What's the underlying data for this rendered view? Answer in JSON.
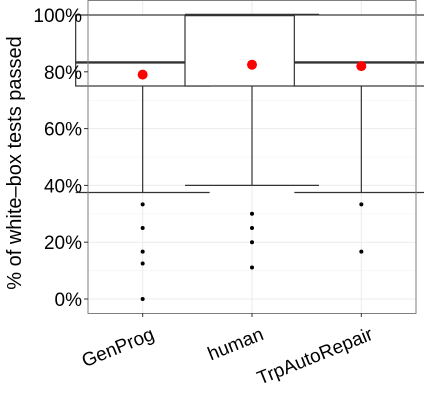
{
  "chart_data": {
    "type": "boxplot",
    "ylabel": "% of white–box tests passed",
    "xlabel": "",
    "ylim": [
      -0.05,
      1.05
    ],
    "y_ticks": [
      0,
      0.2,
      0.4,
      0.6,
      0.8,
      1.0
    ],
    "y_tick_labels": [
      "0%",
      "20%",
      "40%",
      "60%",
      "80%",
      "100%"
    ],
    "grid": true,
    "categories": [
      "GenProg",
      "human",
      "TrpAutoRepair"
    ],
    "boxes": [
      {
        "category": "GenProg",
        "whisker_low": 0.375,
        "q1": 0.75,
        "median": 0.833,
        "q3": 1.0,
        "whisker_high": 1.0,
        "mean": 0.79,
        "outliers": [
          0.333,
          0.25,
          0.167,
          0.125,
          0.0
        ]
      },
      {
        "category": "human",
        "whisker_low": 0.4,
        "q1": 0.75,
        "median": 1.0,
        "q3": 1.0,
        "whisker_high": 1.0,
        "mean": 0.825,
        "outliers": [
          0.3,
          0.25,
          0.2,
          0.111
        ]
      },
      {
        "category": "TrpAutoRepair",
        "whisker_low": 0.375,
        "q1": 0.75,
        "median": 0.833,
        "q3": 1.0,
        "whisker_high": 1.0,
        "mean": 0.82,
        "outliers": [
          0.333,
          0.167
        ]
      }
    ],
    "colors": {
      "mean_point": "#ff0000",
      "box_stroke": "#333333",
      "outlier": "#000000",
      "grid": "#ebebeb",
      "panel_border": "#7f7f7f"
    }
  }
}
